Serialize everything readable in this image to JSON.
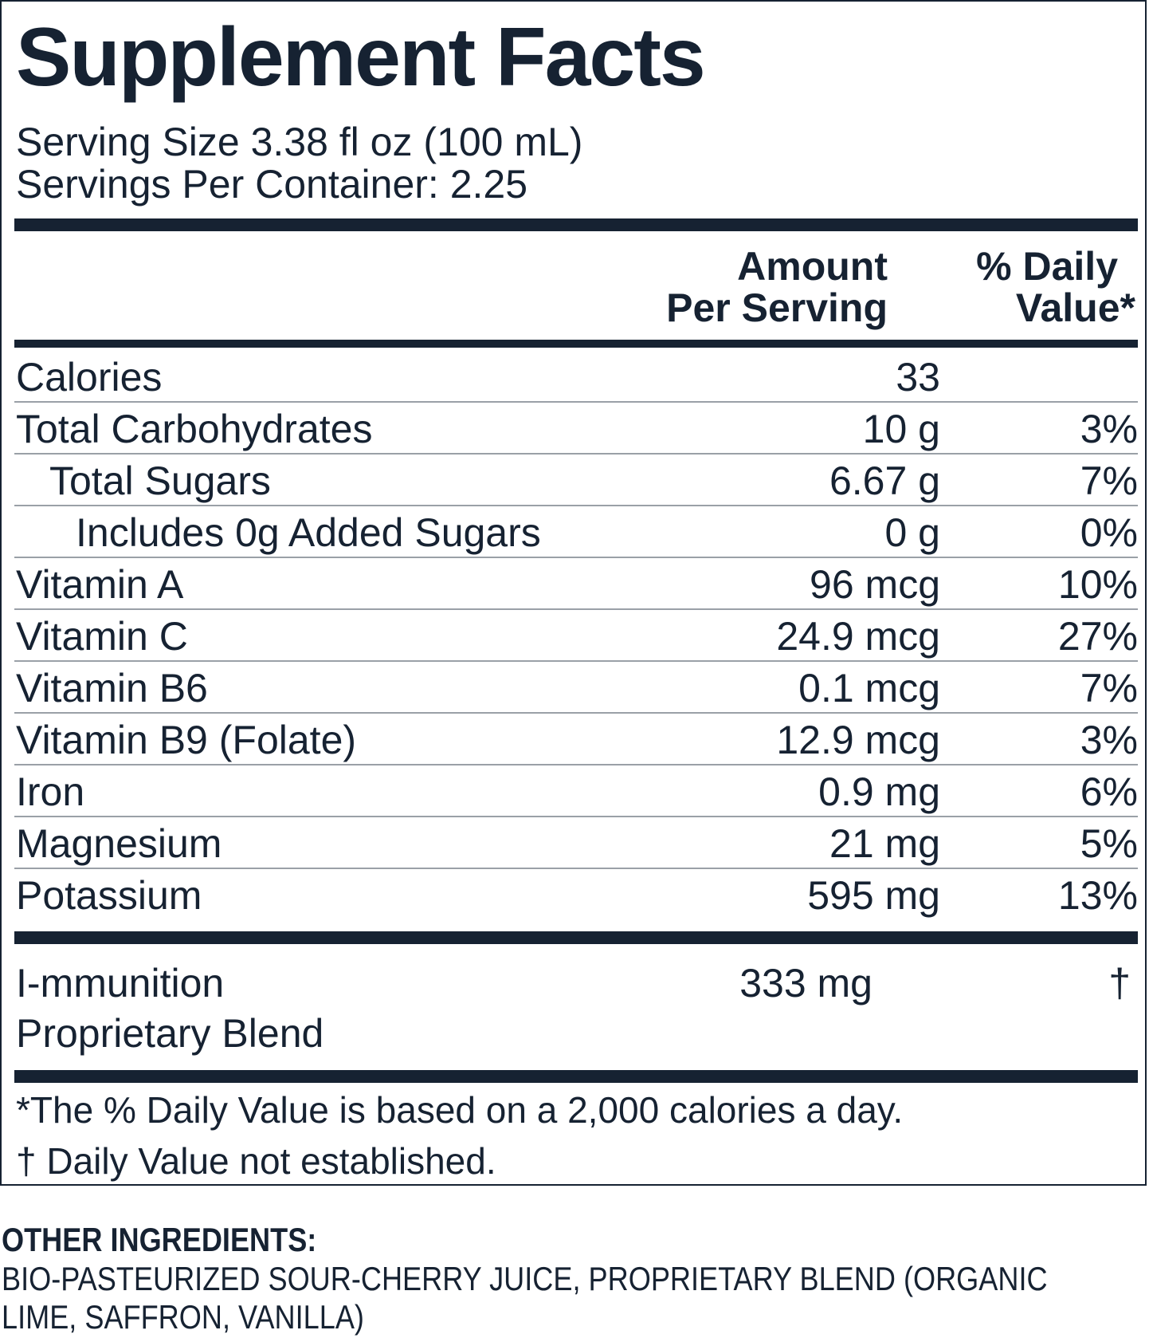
{
  "title": "Supplement Facts",
  "serving_size": "Serving Size 3.38 fl oz (100 mL)",
  "servings_per_container": "Servings Per Container: 2.25",
  "columns": {
    "amount_line1": "Amount",
    "amount_line2": "Per Serving",
    "dv_line1": "% Daily",
    "dv_line2": "Value*"
  },
  "nutrients": [
    {
      "name": "Calories",
      "amount": "33",
      "dv": ""
    },
    {
      "name": "Total Carbohydrates",
      "amount": "10 g",
      "dv": "3%"
    },
    {
      "name": "Total Sugars",
      "amount": "6.67 g",
      "dv": "7%"
    },
    {
      "name": "Includes 0g Added Sugars",
      "amount": "0 g",
      "dv": "0%"
    },
    {
      "name": "Vitamin A",
      "amount": "96 mcg",
      "dv": "10%"
    },
    {
      "name": "Vitamin C",
      "amount": "24.9 mcg",
      "dv": "27%"
    },
    {
      "name": "Vitamin B6",
      "amount": "0.1 mcg",
      "dv": "7%"
    },
    {
      "name": "Vitamin B9 (Folate)",
      "amount": "12.9 mcg",
      "dv": "3%"
    },
    {
      "name": "Iron",
      "amount": "0.9 mg",
      "dv": "6%"
    },
    {
      "name": "Magnesium",
      "amount": "21 mg",
      "dv": "5%"
    },
    {
      "name": "Potassium",
      "amount": "595 mg",
      "dv": "13%"
    }
  ],
  "blend": {
    "name_line1": "I-mmunition",
    "name_line2": "Proprietary Blend",
    "amount": "333 mg",
    "dv": "†"
  },
  "footnotes": {
    "daily_value": "*The % Daily Value is based on a 2,000 calories a day.",
    "not_established": "† Daily Value not established."
  },
  "other_ingredients": {
    "heading": "OTHER INGREDIENTS:",
    "text": "BIO-PASTEURIZED SOUR-CHERRY JUICE, PROPRIETARY BLEND (ORGANIC LIME, SAFFRON, VANILLA)"
  },
  "colors": {
    "ink": "#162232",
    "divider": "#9aa0a7"
  }
}
